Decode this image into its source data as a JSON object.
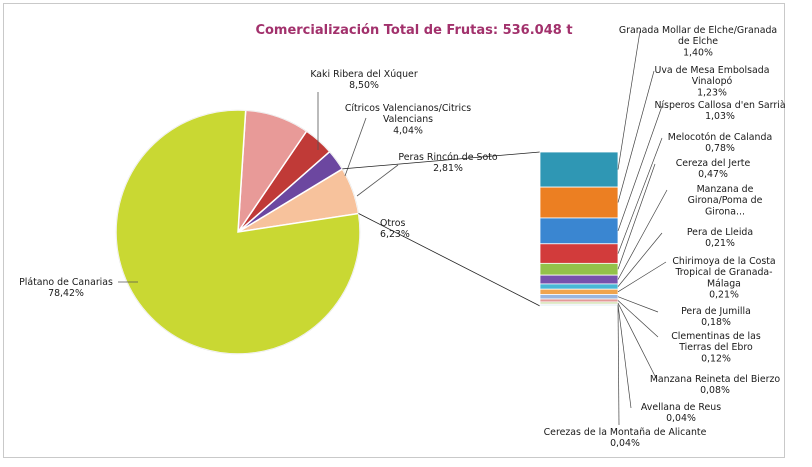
{
  "chart_data": {
    "type": "bar-of-pie",
    "title": "Comercialización Total de Frutas:  536.048  t",
    "pie": [
      {
        "name": "Plátano de Canarias",
        "pct": "78,42%",
        "value": 78.42,
        "color": "#c9d833"
      },
      {
        "name": "Otros",
        "pct": "6,23%",
        "value": 6.23,
        "color": "#f7c29c"
      },
      {
        "name": "Peras Rincón de Soto",
        "pct": "2,81%",
        "value": 2.81,
        "color": "#6c47a0"
      },
      {
        "name": "Cítricos Valencianos/Citrics Valencians",
        "pct": "4,04%",
        "value": 4.04,
        "color": "#c03a37"
      },
      {
        "name": "Kaki Ribera del Xúquer",
        "pct": "8,50%",
        "value": 8.5,
        "color": "#e89a98"
      }
    ],
    "bar": [
      {
        "name": "Granada Mollar de Elche/Granada de Elche",
        "pct": "1,40%",
        "value": 1.4,
        "color": "#2f97b4"
      },
      {
        "name": "Uva de Mesa Embolsada Vinalopó",
        "pct": "1,23%",
        "value": 1.23,
        "color": "#ec7f22"
      },
      {
        "name": "Nísperos Callosa d'en Sarrià",
        "pct": "1,03%",
        "value": 1.03,
        "color": "#3a86d1"
      },
      {
        "name": "Melocotón de Calanda",
        "pct": "0,78%",
        "value": 0.78,
        "color": "#d23b3b"
      },
      {
        "name": "Cereza del Jerte",
        "pct": "0,47%",
        "value": 0.47,
        "color": "#93c24a"
      },
      {
        "name": "Manzana de Girona/Poma de Girona...",
        "pct": "",
        "value": 0.35,
        "color": "#7752ad"
      },
      {
        "name": "Pera de Lleida",
        "pct": "0,21%",
        "value": 0.21,
        "color": "#48b8d6"
      },
      {
        "name": "Chirimoya de la Costa Tropical de Granada-Málaga",
        "pct": "0,21%",
        "value": 0.21,
        "color": "#f0a44e"
      },
      {
        "name": "Pera de Jumilla",
        "pct": "0,18%",
        "value": 0.18,
        "color": "#9ab6e0"
      },
      {
        "name": "Clementinas de las Tierras del Ebro",
        "pct": "0,12%",
        "value": 0.12,
        "color": "#e39a98"
      },
      {
        "name": "Manzana Reineta del Bierzo",
        "pct": "0,08%",
        "value": 0.08,
        "color": "#c7dba0"
      },
      {
        "name": "Avellana de Reus",
        "pct": "0,04%",
        "value": 0.04,
        "color": "#b3a6cf"
      },
      {
        "name": "Cerezas de la Montaña de Alicante",
        "pct": "0,04%",
        "value": 0.04,
        "color": "#a3d6e6"
      }
    ]
  }
}
